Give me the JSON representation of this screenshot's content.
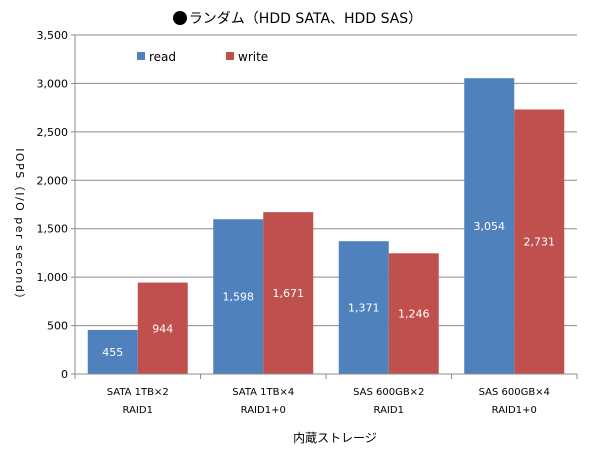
{
  "chart_data": {
    "type": "bar",
    "title": "ランダム（HDD SATA、HDD SAS）",
    "ylabel": "IOPS（I/O per second）",
    "xlabel": "内蔵ストレージ",
    "ylim": [
      0,
      3500
    ],
    "yticks": [
      0,
      500,
      1000,
      1500,
      2000,
      2500,
      3000,
      3500
    ],
    "ytick_labels": [
      "0",
      "500",
      "1,000",
      "1,500",
      "2,000",
      "2,500",
      "3,000",
      "3,500"
    ],
    "categories": [
      [
        "SATA 1TB×2",
        "RAID1"
      ],
      [
        "SATA 1TB×4",
        "RAID1+0"
      ],
      [
        "SAS 600GB×2",
        "RAID1"
      ],
      [
        "SAS 600GB×4",
        "RAID1+0"
      ]
    ],
    "series": [
      {
        "name": "read",
        "color": "#4F81BD",
        "values": [
          455,
          1598,
          1371,
          3054
        ],
        "labels": [
          "455",
          "1,598",
          "1,371",
          "3,054"
        ]
      },
      {
        "name": "write",
        "color": "#C0504D",
        "values": [
          944,
          1671,
          1246,
          2731
        ],
        "labels": [
          "944",
          "1,671",
          "1,246",
          "2,731"
        ]
      }
    ],
    "grid": true,
    "legend_position": "top-left",
    "title_icon": "black-circle-icon"
  }
}
